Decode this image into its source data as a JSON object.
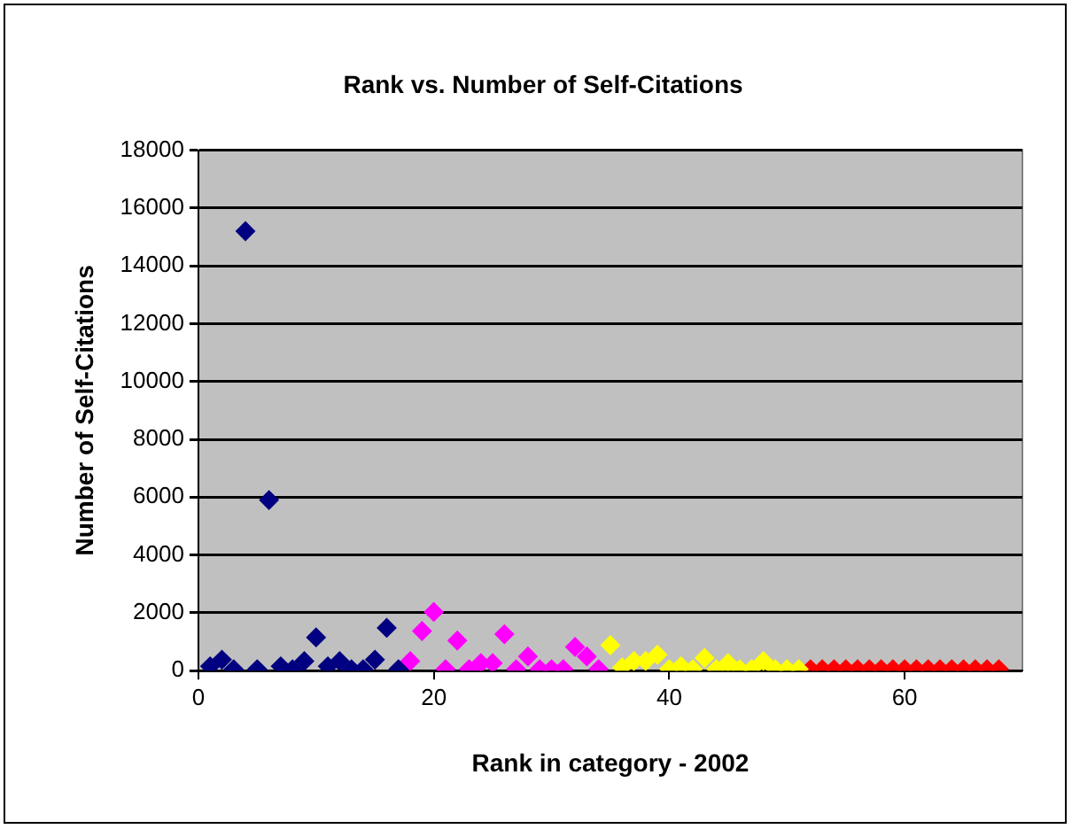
{
  "chart_data": {
    "type": "scatter",
    "title": "Rank vs. Number of Self-Citations",
    "xlabel": "Rank in category - 2002",
    "ylabel": "Number of Self-Citations",
    "series": [
      {
        "color": "#000080",
        "x": [
          1,
          2,
          3,
          4,
          5,
          6,
          7,
          8,
          9,
          10,
          11,
          12,
          13,
          14,
          15,
          16,
          17
        ],
        "values": [
          150,
          380,
          50,
          15200,
          50,
          5900,
          150,
          50,
          330,
          1150,
          150,
          330,
          50,
          50,
          380,
          1480,
          50
        ]
      },
      {
        "color": "#ff00ff",
        "x": [
          18,
          19,
          20,
          21,
          22,
          23,
          24,
          25,
          26,
          27,
          28,
          29,
          30,
          31,
          32,
          33,
          34
        ],
        "values": [
          330,
          1370,
          2030,
          50,
          1040,
          50,
          260,
          260,
          1260,
          50,
          490,
          50,
          50,
          50,
          820,
          490,
          50
        ]
      },
      {
        "color": "#ffff00",
        "x": [
          35,
          36,
          37,
          38,
          39,
          40,
          41,
          42,
          43,
          44,
          45,
          46,
          47,
          48,
          49,
          50,
          51
        ],
        "values": [
          880,
          110,
          330,
          330,
          550,
          50,
          150,
          50,
          440,
          50,
          260,
          50,
          50,
          330,
          50,
          50,
          50
        ]
      },
      {
        "color": "#ff0000",
        "x": [
          52,
          53,
          54,
          55,
          56,
          57,
          58,
          59,
          60,
          61,
          62,
          63,
          64,
          65,
          66,
          67,
          68
        ],
        "values": [
          50,
          50,
          50,
          50,
          50,
          50,
          50,
          50,
          50,
          50,
          50,
          50,
          50,
          50,
          50,
          50,
          50
        ]
      }
    ],
    "xlim": [
      0,
      70
    ],
    "xticks": [
      0,
      20,
      40,
      60
    ],
    "ylim": [
      0,
      18000
    ],
    "yticks": [
      0,
      2000,
      4000,
      6000,
      8000,
      10000,
      12000,
      14000,
      16000,
      18000
    ],
    "grid": "y",
    "marker": "diamond",
    "legend": false
  }
}
